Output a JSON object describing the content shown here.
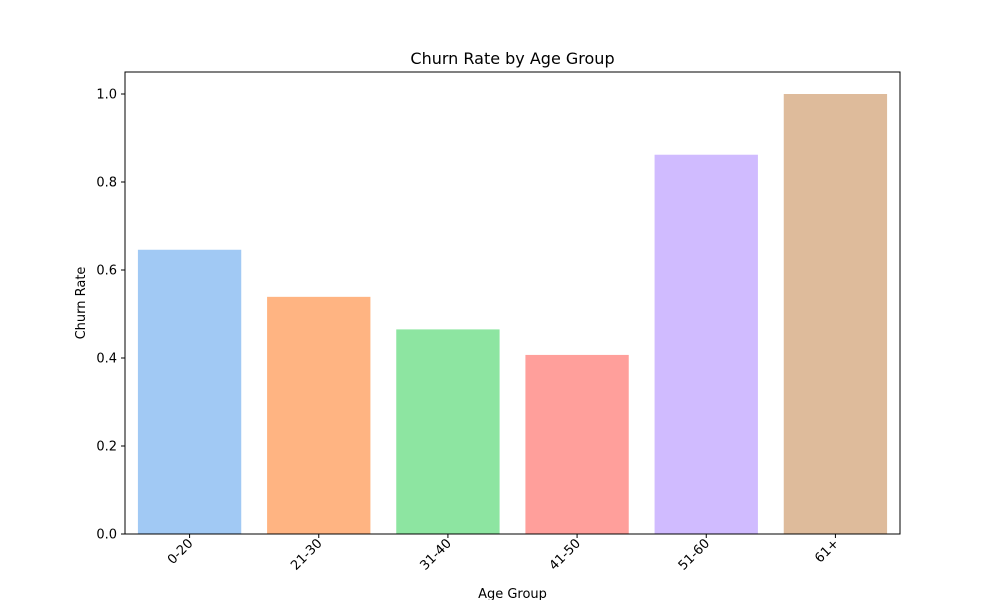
{
  "chart_data": {
    "type": "bar",
    "title": "Churn Rate by Age Group",
    "xlabel": "Age Group",
    "ylabel": "Churn Rate",
    "categories": [
      "0-20",
      "21-30",
      "31-40",
      "41-50",
      "51-60",
      "61+"
    ],
    "values": [
      0.646,
      0.539,
      0.465,
      0.407,
      0.862,
      1.0
    ],
    "colors": [
      "#a1c9f4",
      "#ffb482",
      "#8de5a1",
      "#ff9f9b",
      "#d0bbff",
      "#debb9b"
    ],
    "ylim": [
      0,
      1.05
    ],
    "yticks": [
      0.0,
      0.2,
      0.4,
      0.6,
      0.8,
      1.0
    ],
    "ytick_labels": [
      "0.0",
      "0.2",
      "0.4",
      "0.6",
      "0.8",
      "1.0"
    ],
    "xtick_rotation": 45,
    "grid": false,
    "legend": false
  }
}
